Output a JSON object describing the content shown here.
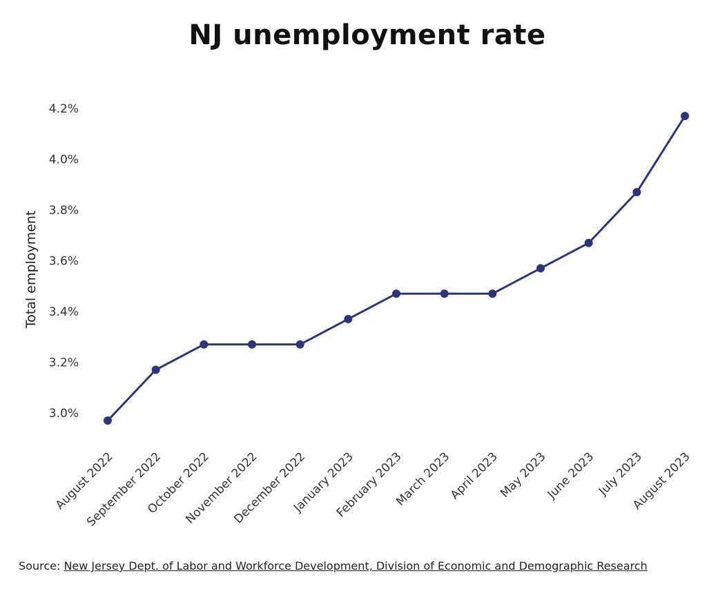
{
  "chart_data": {
    "type": "line",
    "title": "NJ unemployment rate",
    "ylabel": "Total employment",
    "xlabel": "",
    "ylim": [
      2.9,
      4.25
    ],
    "yticks": [
      3.0,
      3.2,
      3.4,
      3.6,
      3.8,
      4.0,
      4.2
    ],
    "ytick_labels": [
      "3.0%",
      "3.2%",
      "3.4%",
      "3.6%",
      "3.8%",
      "4.0%",
      "4.2%"
    ],
    "categories": [
      "August 2022",
      "September 2022",
      "October 2022",
      "November 2022",
      "December 2022",
      "January 2023",
      "February 2023",
      "March 2023",
      "April 2023",
      "May 2023",
      "June 2023",
      "July 2023",
      "August 2023"
    ],
    "series": [
      {
        "color": "#2e3479",
        "values": [
          2.97,
          3.17,
          3.27,
          3.27,
          3.27,
          3.37,
          3.47,
          3.47,
          3.47,
          3.57,
          3.67,
          3.87,
          4.17
        ]
      }
    ],
    "grid": false,
    "legend": "none"
  },
  "source": {
    "prefix": "Source: ",
    "link_text": "New Jersey Dept. of Labor and Workforce Development, Division of Economic and Demographic Research"
  }
}
